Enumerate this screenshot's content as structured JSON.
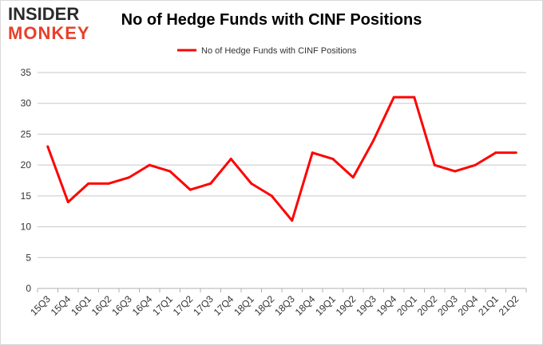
{
  "logo": {
    "top": "INSIDER",
    "bottom": "MONKEY"
  },
  "chart_data": {
    "type": "line",
    "title": "No of Hedge Funds with CINF Positions",
    "categories": [
      "15Q3",
      "15Q4",
      "16Q1",
      "16Q2",
      "16Q3",
      "16Q4",
      "17Q1",
      "17Q2",
      "17Q3",
      "17Q4",
      "18Q1",
      "18Q2",
      "18Q3",
      "18Q4",
      "19Q1",
      "19Q2",
      "19Q3",
      "19Q4",
      "20Q1",
      "20Q2",
      "20Q3",
      "20Q4",
      "21Q1",
      "21Q2"
    ],
    "series": [
      {
        "name": "No of Hedge Funds with CINF Positions",
        "color": "#ff0000",
        "values": [
          23,
          14,
          17,
          17,
          18,
          20,
          19,
          16,
          17,
          21,
          17,
          15,
          11,
          22,
          21,
          18,
          24,
          31,
          31,
          20,
          19,
          20,
          22,
          22
        ]
      }
    ],
    "ylim": [
      0,
      35
    ],
    "yticks": [
      0,
      5,
      10,
      15,
      20,
      25,
      30,
      35
    ],
    "grid": true,
    "legend": "top-center",
    "xlabel": "",
    "ylabel": ""
  }
}
